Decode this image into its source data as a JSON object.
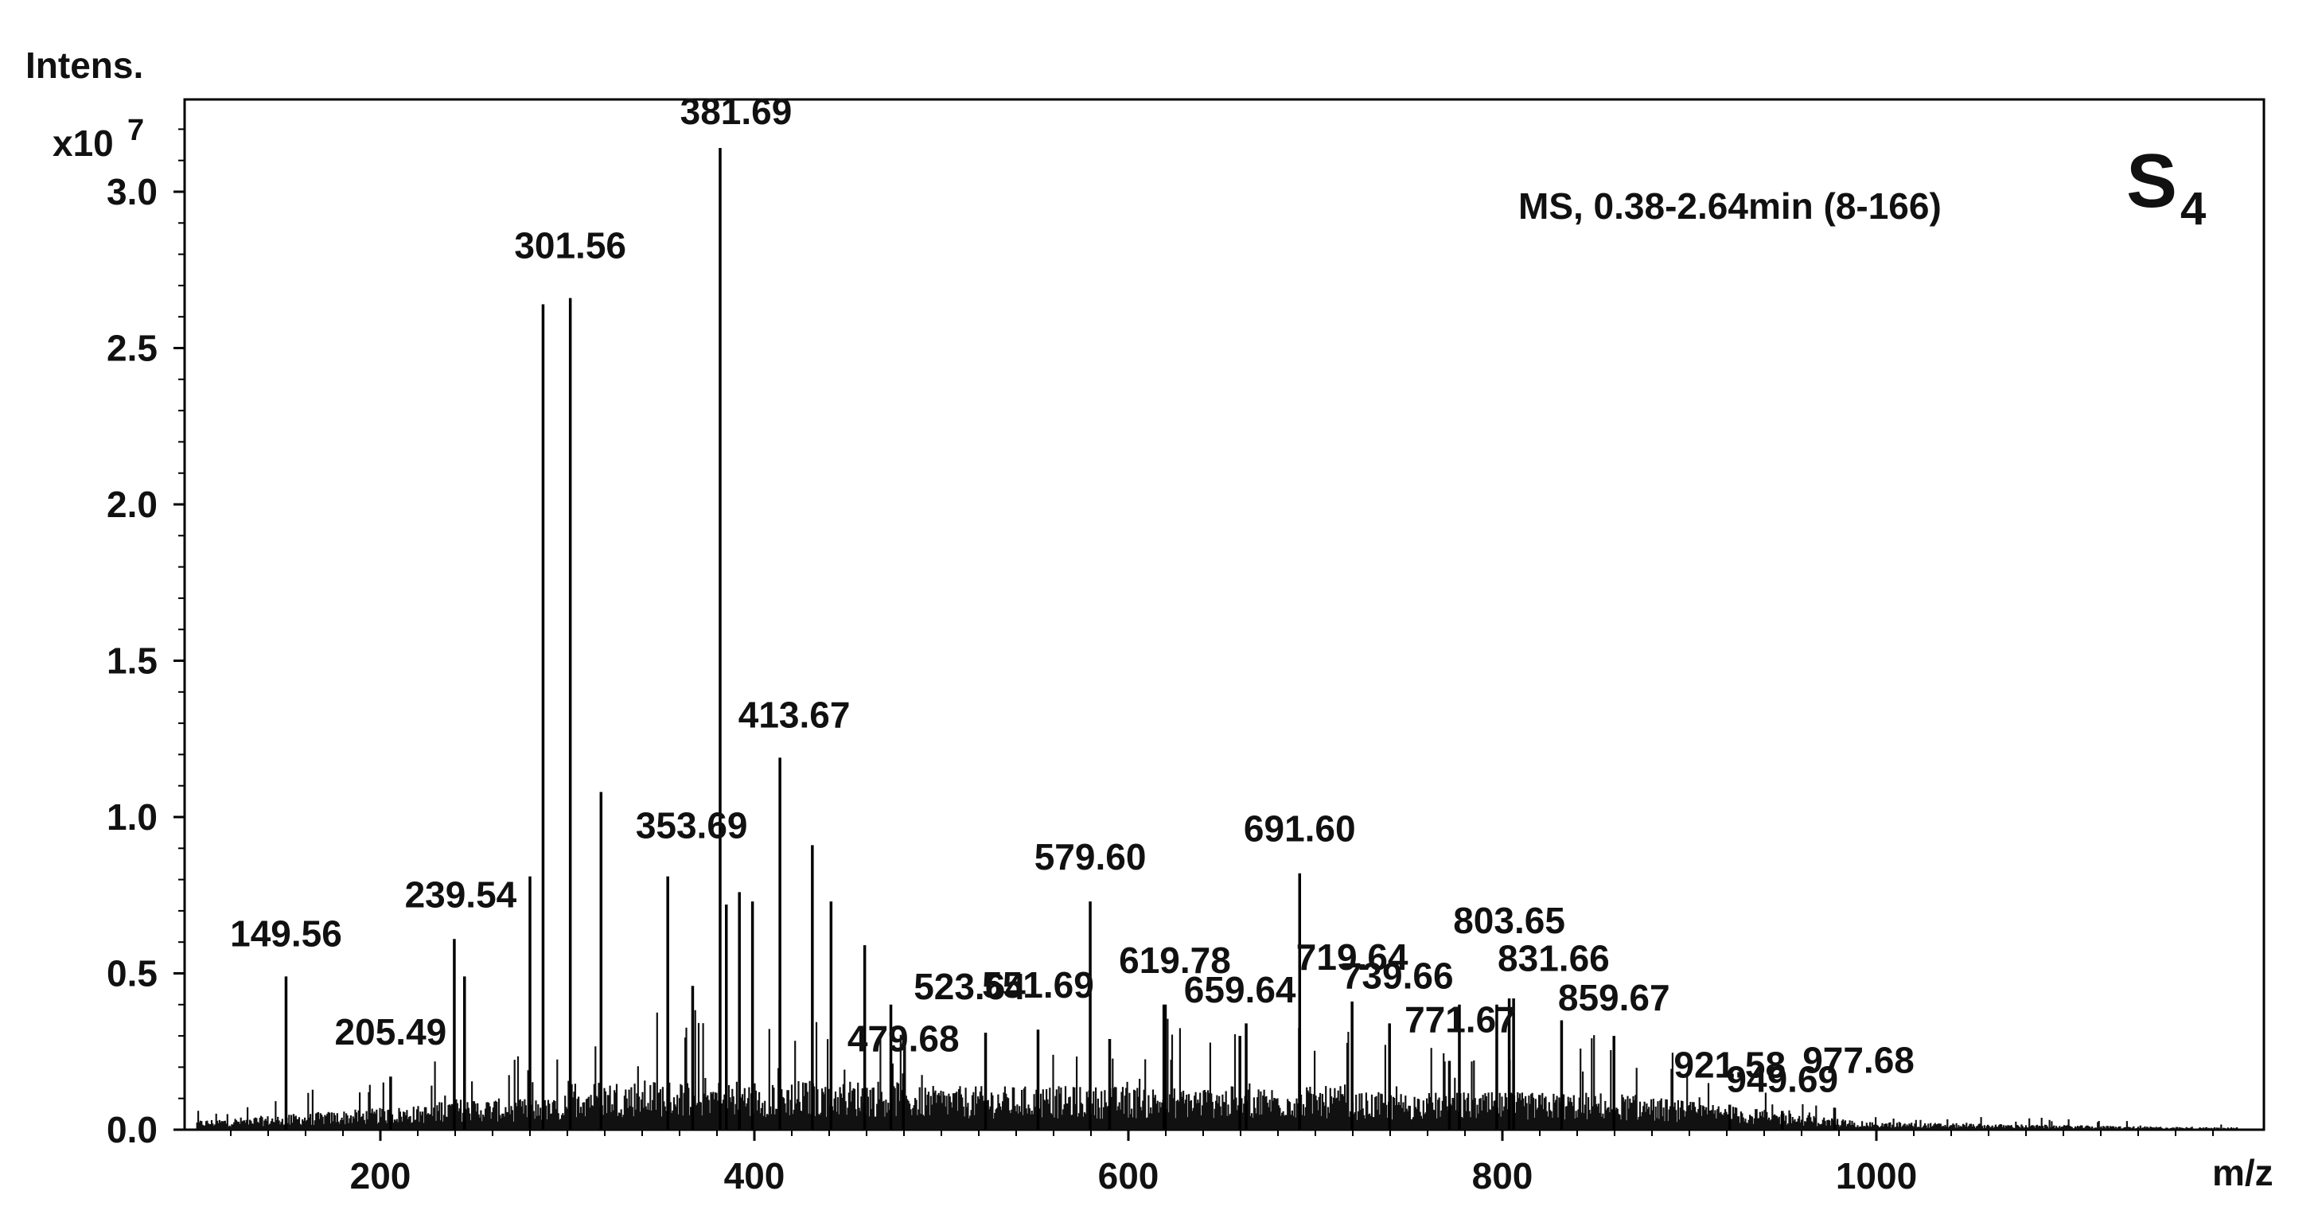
{
  "chart_data": {
    "type": "mass_spectrum",
    "title": "",
    "xlabel": "m/z",
    "ylabel": "Intens.",
    "yscale_label": "x10",
    "yscale_exponent": "7",
    "xlim": [
      100,
      1200
    ],
    "ylim": [
      0,
      3.3
    ],
    "xticks": [
      200,
      400,
      600,
      800,
      1000
    ],
    "yticks": [
      0.0,
      0.5,
      1.0,
      1.5,
      2.0,
      2.5,
      3.0
    ],
    "ytick_labels": [
      "0.0",
      "0.5",
      "1.0",
      "1.5",
      "2.0",
      "2.5",
      "3.0"
    ],
    "annotation": "MS, 0.38-2.64min (8-166)",
    "sample_label": "S",
    "sample_subscript": "4",
    "peaks": [
      {
        "mz": 149.56,
        "intensity": 0.49,
        "label": "149.56"
      },
      {
        "mz": 205.49,
        "intensity": 0.17,
        "label": "205.49"
      },
      {
        "mz": 239.54,
        "intensity": 0.61,
        "label": "239.54"
      },
      {
        "mz": 301.56,
        "intensity": 2.66,
        "label": "301.56"
      },
      {
        "mz": 353.69,
        "intensity": 0.81,
        "label": "353.69"
      },
      {
        "mz": 381.69,
        "intensity": 3.14,
        "label": "381.69"
      },
      {
        "mz": 413.67,
        "intensity": 1.19,
        "label": "413.67"
      },
      {
        "mz": 479.68,
        "intensity": 0.18,
        "label": "479.68"
      },
      {
        "mz": 523.64,
        "intensity": 0.31,
        "label": "523.64"
      },
      {
        "mz": 551.69,
        "intensity": 0.32,
        "label": "551.69"
      },
      {
        "mz": 579.6,
        "intensity": 0.73,
        "label": "579.60"
      },
      {
        "mz": 619.78,
        "intensity": 0.4,
        "label": "619.78"
      },
      {
        "mz": 659.64,
        "intensity": 0.3,
        "label": "659.64"
      },
      {
        "mz": 691.6,
        "intensity": 0.82,
        "label": "691.60"
      },
      {
        "mz": 719.64,
        "intensity": 0.41,
        "label": "719.64"
      },
      {
        "mz": 739.66,
        "intensity": 0.34,
        "label": "739.66"
      },
      {
        "mz": 771.67,
        "intensity": 0.22,
        "label": "771.67"
      },
      {
        "mz": 803.65,
        "intensity": 0.42,
        "label": "803.65"
      },
      {
        "mz": 831.66,
        "intensity": 0.35,
        "label": "831.66"
      },
      {
        "mz": 859.67,
        "intensity": 0.3,
        "label": "859.67"
      },
      {
        "mz": 921.58,
        "intensity": 0.08,
        "label": "921.58"
      },
      {
        "mz": 949.69,
        "intensity": 0.06,
        "label": "949.69"
      },
      {
        "mz": 977.68,
        "intensity": 0.07,
        "label": "977.68"
      }
    ],
    "unlabeled_peaks": [
      {
        "mz": 287,
        "intensity": 2.64
      },
      {
        "mz": 280,
        "intensity": 0.81
      },
      {
        "mz": 245,
        "intensity": 0.49
      },
      {
        "mz": 318,
        "intensity": 1.08
      },
      {
        "mz": 367,
        "intensity": 0.46
      },
      {
        "mz": 385,
        "intensity": 0.72
      },
      {
        "mz": 392,
        "intensity": 0.76
      },
      {
        "mz": 399,
        "intensity": 0.73
      },
      {
        "mz": 431,
        "intensity": 0.91
      },
      {
        "mz": 441,
        "intensity": 0.73
      },
      {
        "mz": 459,
        "intensity": 0.59
      },
      {
        "mz": 473,
        "intensity": 0.4
      },
      {
        "mz": 590,
        "intensity": 0.29
      },
      {
        "mz": 619,
        "intensity": 0.4
      },
      {
        "mz": 663,
        "intensity": 0.34
      },
      {
        "mz": 777,
        "intensity": 0.4
      },
      {
        "mz": 797,
        "intensity": 0.4
      },
      {
        "mz": 806,
        "intensity": 0.42
      }
    ]
  }
}
